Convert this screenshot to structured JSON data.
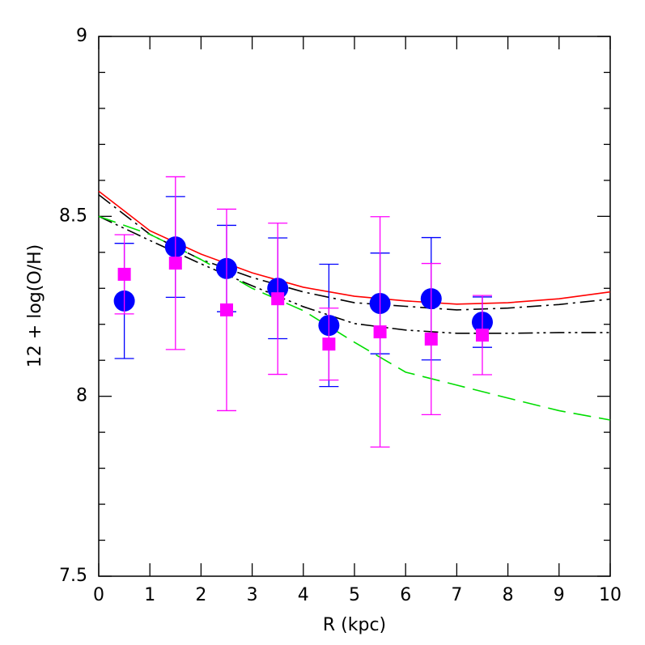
{
  "chart_data": {
    "type": "scatter",
    "xlabel": "R (kpc)",
    "ylabel": "12 + log(O/H)",
    "xlim": [
      0,
      10
    ],
    "ylim": [
      7.5,
      9
    ],
    "xticks": [
      0,
      1,
      2,
      3,
      4,
      5,
      6,
      7,
      8,
      9,
      10
    ],
    "yticks": [
      7.5,
      8,
      8.5,
      9
    ],
    "yminorticks": [
      7.6,
      7.7,
      7.8,
      7.9,
      8.1,
      8.2,
      8.3,
      8.4,
      8.6,
      8.7,
      8.8,
      8.9
    ],
    "lines": [
      {
        "color": "#ff0000",
        "dash": "solid",
        "x": [
          0,
          1,
          2,
          3,
          4,
          5,
          6,
          7,
          8,
          9,
          10
        ],
        "values": [
          8.57,
          8.46,
          8.395,
          8.343,
          8.303,
          8.278,
          8.265,
          8.256,
          8.26,
          8.271,
          8.29
        ]
      },
      {
        "color": "#000000",
        "dash": "dashdot",
        "x": [
          0,
          1,
          2,
          3,
          4,
          5,
          6,
          7,
          8,
          9,
          10
        ],
        "values": [
          8.56,
          8.45,
          8.38,
          8.33,
          8.29,
          8.26,
          8.25,
          8.24,
          8.245,
          8.255,
          8.27
        ]
      },
      {
        "color": "#000000",
        "dash": "dashdotdot",
        "x": [
          0,
          1,
          2,
          3,
          4,
          5,
          6,
          7,
          8,
          9,
          10
        ],
        "values": [
          8.5,
          8.433,
          8.368,
          8.307,
          8.249,
          8.202,
          8.184,
          8.175,
          8.175,
          8.177,
          8.177
        ]
      },
      {
        "color": "#00dd00",
        "dash": "dashed",
        "x": [
          0,
          1,
          2,
          3,
          4,
          5,
          6,
          7,
          8,
          9,
          10
        ],
        "values": [
          8.5,
          8.45,
          8.38,
          8.3,
          8.238,
          8.15,
          8.067,
          8.031,
          7.995,
          7.96,
          7.934
        ]
      }
    ],
    "series": [
      {
        "color": "#0000ff",
        "marker": "circle",
        "x": [
          0.5,
          1.5,
          2.5,
          3.5,
          4.5,
          5.5,
          6.5,
          7.5
        ],
        "values": [
          8.265,
          8.415,
          8.355,
          8.3,
          8.197,
          8.258,
          8.271,
          8.206
        ],
        "errors": [
          0.16,
          0.14,
          0.12,
          0.14,
          0.17,
          0.14,
          0.17,
          0.07
        ]
      },
      {
        "color": "#ff00ff",
        "marker": "square",
        "x": [
          0.5,
          1.5,
          2.5,
          3.5,
          4.5,
          5.5,
          6.5,
          7.5
        ],
        "values": [
          8.339,
          8.37,
          8.24,
          8.271,
          8.145,
          8.179,
          8.159,
          8.17
        ],
        "errors": [
          0.11,
          0.24,
          0.28,
          0.21,
          0.1,
          0.32,
          0.21,
          0.11
        ]
      }
    ]
  }
}
